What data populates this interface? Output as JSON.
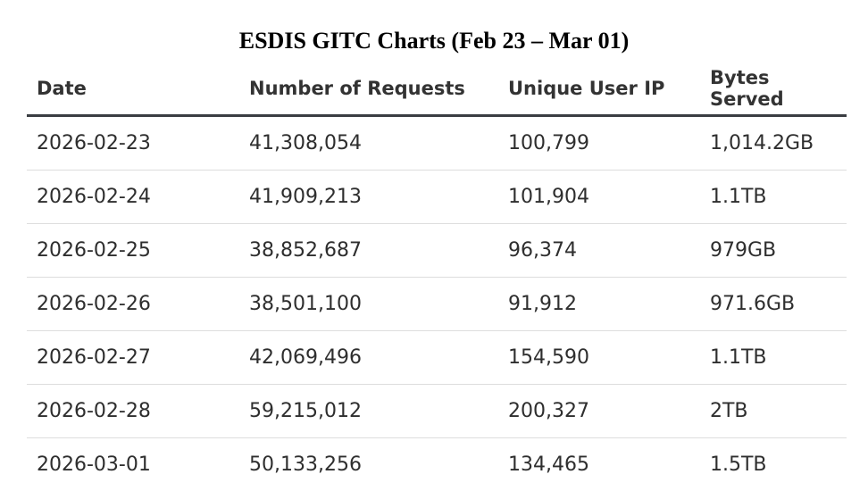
{
  "chart_data": {
    "type": "table",
    "title": "ESDIS GITC Charts (Feb 23 – Mar 01)",
    "columns": [
      "Date",
      "Number of Requests",
      "Unique User IP",
      "Bytes Served"
    ],
    "rows": [
      [
        "2026-02-23",
        "41,308,054",
        "100,799",
        "1,014.2GB"
      ],
      [
        "2026-02-24",
        "41,909,213",
        "101,904",
        "1.1TB"
      ],
      [
        "2026-02-25",
        "38,852,687",
        "96,374",
        "979GB"
      ],
      [
        "2026-02-26",
        "38,501,100",
        "91,912",
        "971.6GB"
      ],
      [
        "2026-02-27",
        "42,069,496",
        "154,590",
        "1.1TB"
      ],
      [
        "2026-02-28",
        "59,215,012",
        "200,327",
        "2TB"
      ],
      [
        "2026-03-01",
        "50,133,256",
        "134,465",
        "1.5TB"
      ]
    ]
  }
}
